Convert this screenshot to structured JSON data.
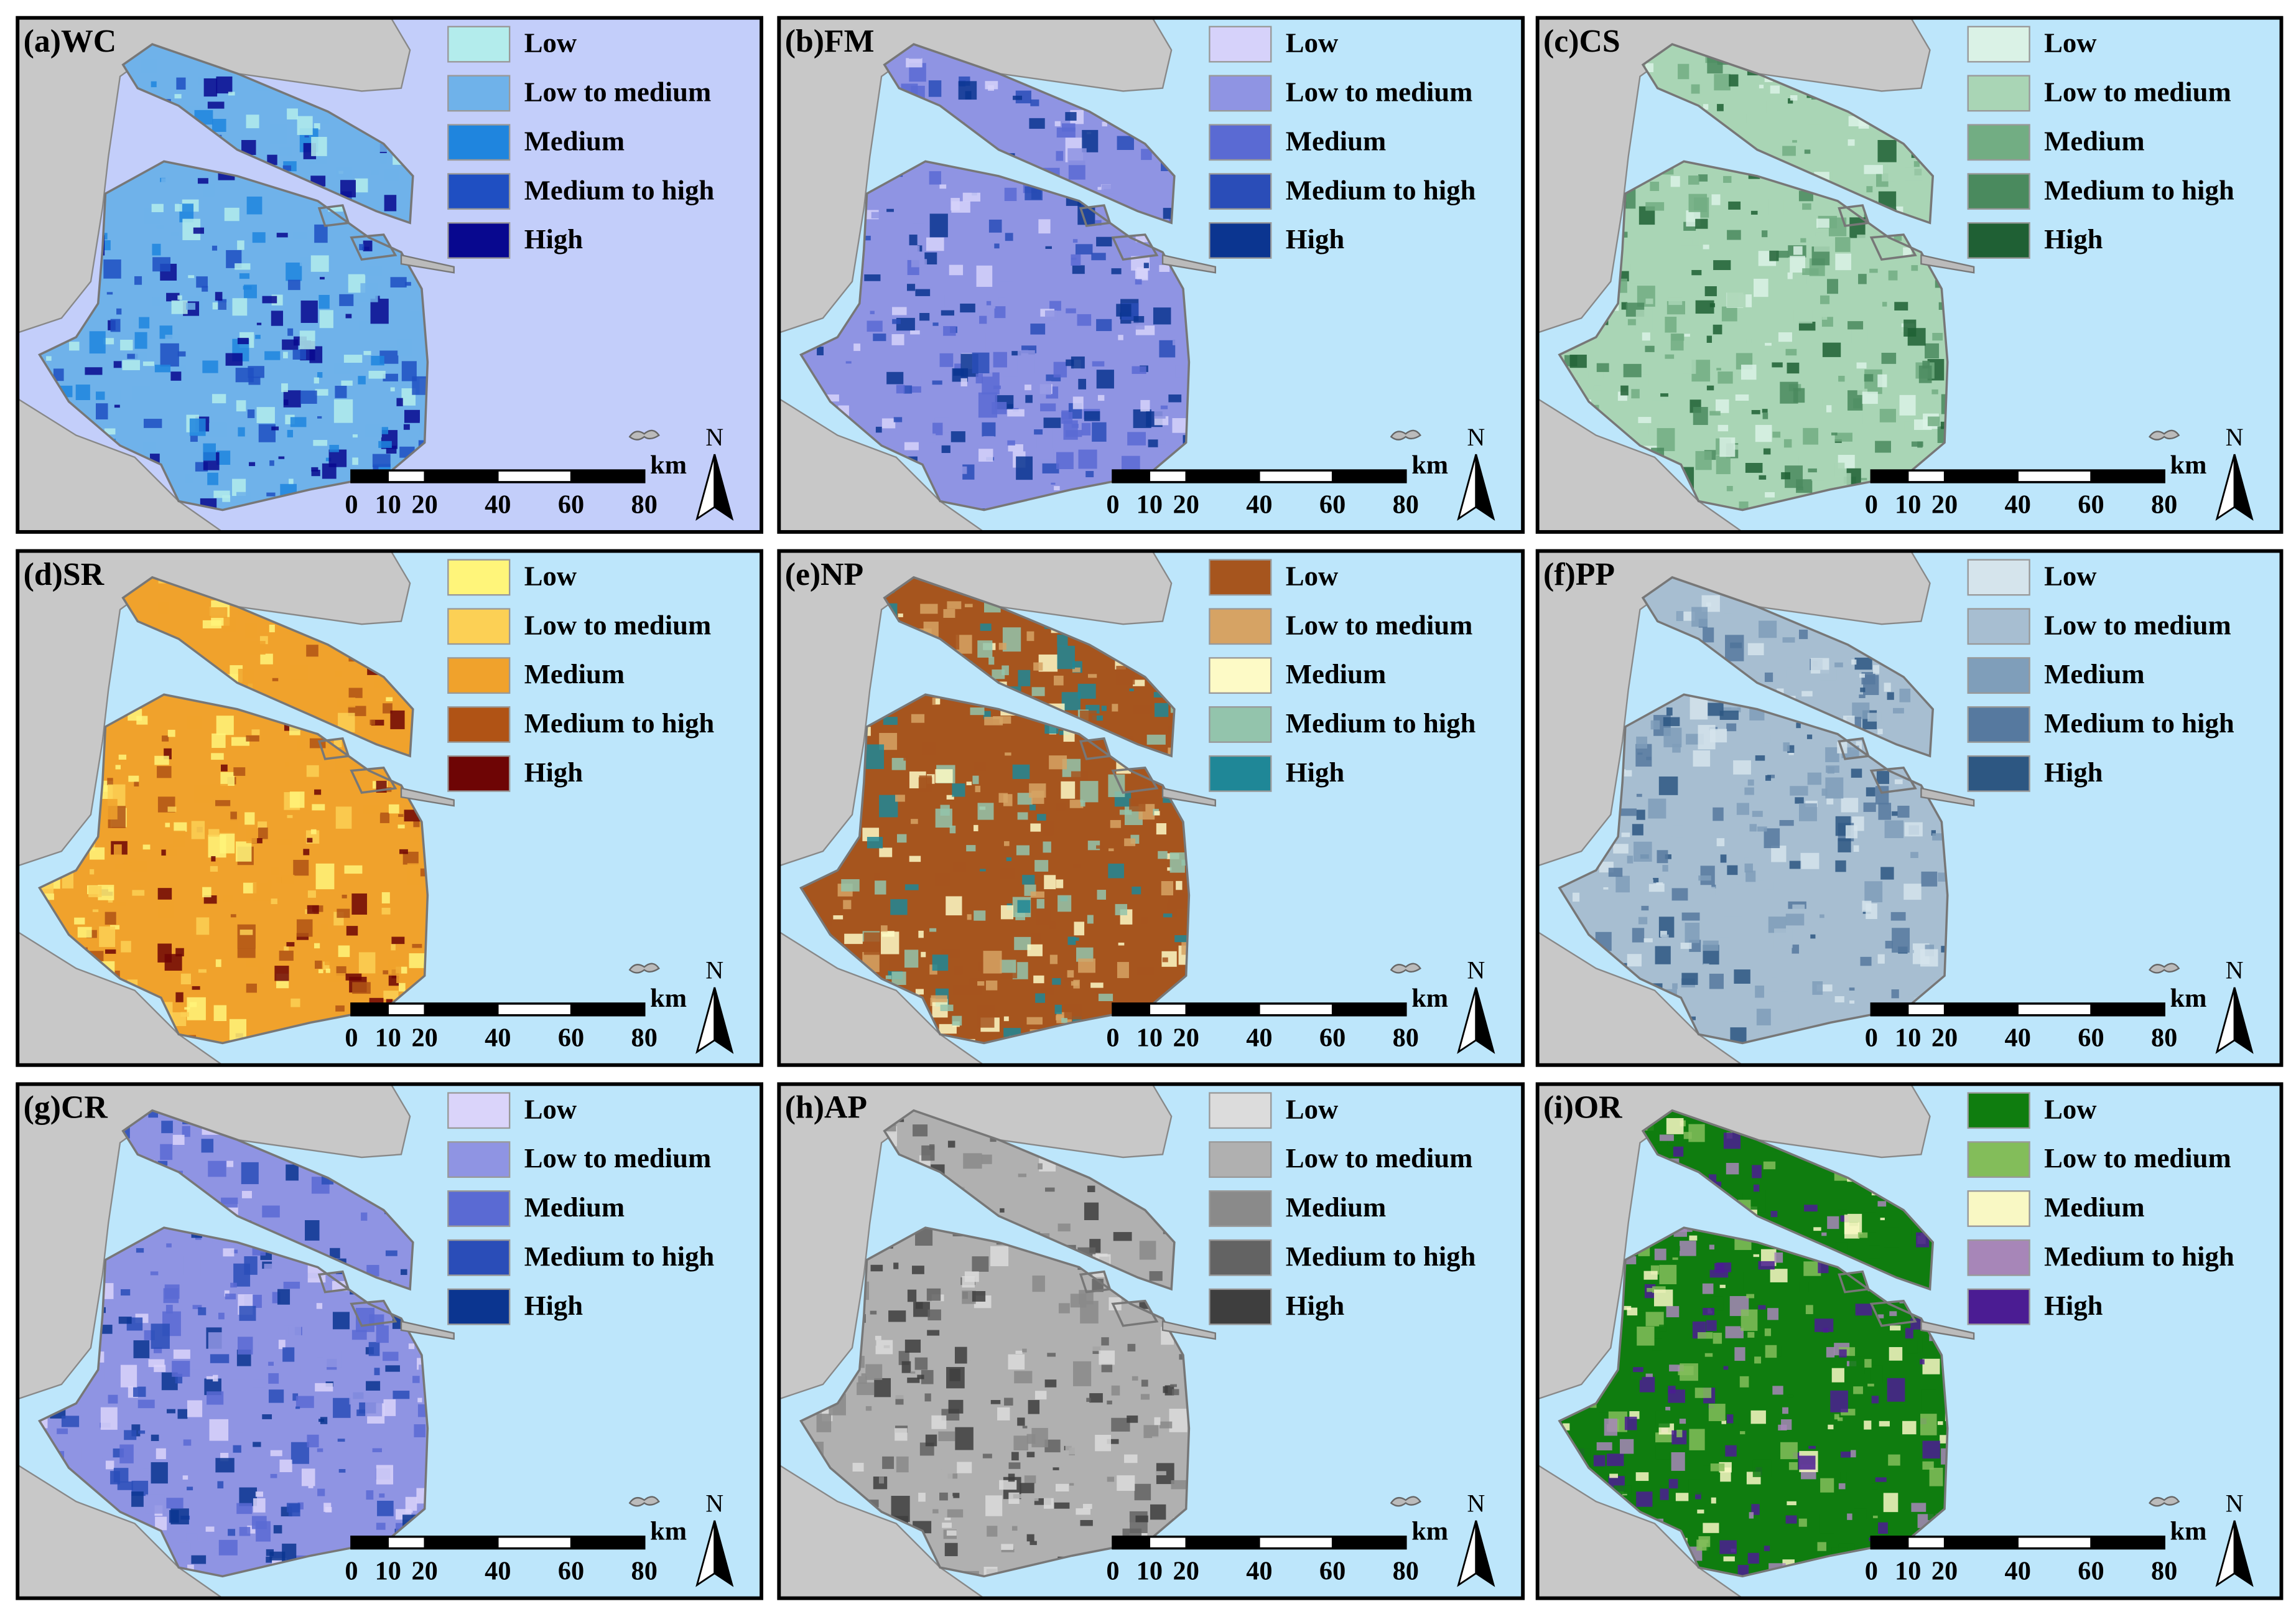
{
  "panels": [
    {
      "label": "(a)WC",
      "water": "#c3cefa",
      "legend": [
        {
          "label": "Low",
          "color": "#b3ecec"
        },
        {
          "label": "Low to medium",
          "color": "#6fb2ea"
        },
        {
          "label": "Medium",
          "color": "#1f85de"
        },
        {
          "label": "Medium to high",
          "color": "#1f4fc2"
        },
        {
          "label": "High",
          "color": "#08088f"
        }
      ],
      "scale_ticks": [
        0,
        10,
        20,
        40,
        60,
        80
      ],
      "scale_unit": "km",
      "north": "N"
    },
    {
      "label": "(b)FM",
      "water": "#bde6fb",
      "legend": [
        {
          "label": "Low",
          "color": "#d6d2fa"
        },
        {
          "label": "Low to medium",
          "color": "#8f94e3"
        },
        {
          "label": "Medium",
          "color": "#5a6ad3"
        },
        {
          "label": "Medium to high",
          "color": "#2a4db8"
        },
        {
          "label": "High",
          "color": "#0b3590"
        }
      ],
      "scale_ticks": [
        0,
        10,
        20,
        40,
        60,
        80
      ],
      "scale_unit": "km",
      "north": "N"
    },
    {
      "label": "(c)CS",
      "water": "#bde6fb",
      "legend": [
        {
          "label": "Low",
          "color": "#daf2e6"
        },
        {
          "label": "Low to medium",
          "color": "#a9d5b5"
        },
        {
          "label": "Medium",
          "color": "#72ad83"
        },
        {
          "label": "Medium to high",
          "color": "#4a8a5e"
        },
        {
          "label": "High",
          "color": "#1f6034"
        }
      ],
      "scale_ticks": [
        0,
        10,
        20,
        40,
        60,
        80
      ],
      "scale_unit": "km",
      "north": "N"
    },
    {
      "label": "(d)SR",
      "water": "#bde6fb",
      "legend": [
        {
          "label": "Low",
          "color": "#fff57a"
        },
        {
          "label": "Low to medium",
          "color": "#fcd055"
        },
        {
          "label": "Medium",
          "color": "#f0a22c"
        },
        {
          "label": "Medium to high",
          "color": "#b05315"
        },
        {
          "label": "High",
          "color": "#6e0505"
        }
      ],
      "scale_ticks": [
        0,
        10,
        20,
        40,
        60,
        80
      ],
      "scale_unit": "km",
      "north": "N"
    },
    {
      "label": "(e)NP",
      "water": "#bde6fb",
      "legend": [
        {
          "label": "Low",
          "color": "#a6551e"
        },
        {
          "label": "Low to medium",
          "color": "#d6a364"
        },
        {
          "label": "Medium",
          "color": "#fdfac6"
        },
        {
          "label": "Medium to high",
          "color": "#93c4ac"
        },
        {
          "label": "High",
          "color": "#1f8797"
        }
      ],
      "scale_ticks": [
        0,
        10,
        20,
        40,
        60,
        80
      ],
      "scale_unit": "km",
      "north": "N"
    },
    {
      "label": "(f)PP",
      "water": "#bde6fb",
      "legend": [
        {
          "label": "Low",
          "color": "#d5e4ec"
        },
        {
          "label": "Low to medium",
          "color": "#a7bed1"
        },
        {
          "label": "Medium",
          "color": "#7f9eba"
        },
        {
          "label": "Medium to high",
          "color": "#56799f"
        },
        {
          "label": "High",
          "color": "#2d5782"
        }
      ],
      "scale_ticks": [
        0,
        10,
        20,
        40,
        60,
        80
      ],
      "scale_unit": "km",
      "north": "N"
    },
    {
      "label": "(g)CR",
      "water": "#bde6fb",
      "legend": [
        {
          "label": "Low",
          "color": "#dad4fa"
        },
        {
          "label": "Low to medium",
          "color": "#8f94e3"
        },
        {
          "label": "Medium",
          "color": "#5a6ad3"
        },
        {
          "label": "Medium to high",
          "color": "#2a4db8"
        },
        {
          "label": "High",
          "color": "#0b3590"
        }
      ],
      "scale_ticks": [
        0,
        10,
        20,
        40,
        60,
        80
      ],
      "scale_unit": "km",
      "north": "N"
    },
    {
      "label": "(h)AP",
      "water": "#bde6fb",
      "legend": [
        {
          "label": "Low",
          "color": "#dcdcdc"
        },
        {
          "label": "Low to medium",
          "color": "#b0b0b0"
        },
        {
          "label": "Medium",
          "color": "#8a8a8a"
        },
        {
          "label": "Medium to high",
          "color": "#636363"
        },
        {
          "label": "High",
          "color": "#3e3e3e"
        }
      ],
      "scale_ticks": [
        0,
        10,
        20,
        40,
        60,
        80
      ],
      "scale_unit": "km",
      "north": "N"
    },
    {
      "label": "(i)OR",
      "water": "#bde6fb",
      "legend": [
        {
          "label": "Low",
          "color": "#0f7d0f"
        },
        {
          "label": "Low to medium",
          "color": "#83bd5a"
        },
        {
          "label": "Medium",
          "color": "#f9f8c4"
        },
        {
          "label": "Medium to high",
          "color": "#a786b8"
        },
        {
          "label": "High",
          "color": "#4b1c93"
        }
      ],
      "scale_ticks": [
        0,
        10,
        20,
        40,
        60,
        80
      ],
      "scale_unit": "km",
      "north": "N"
    }
  ]
}
